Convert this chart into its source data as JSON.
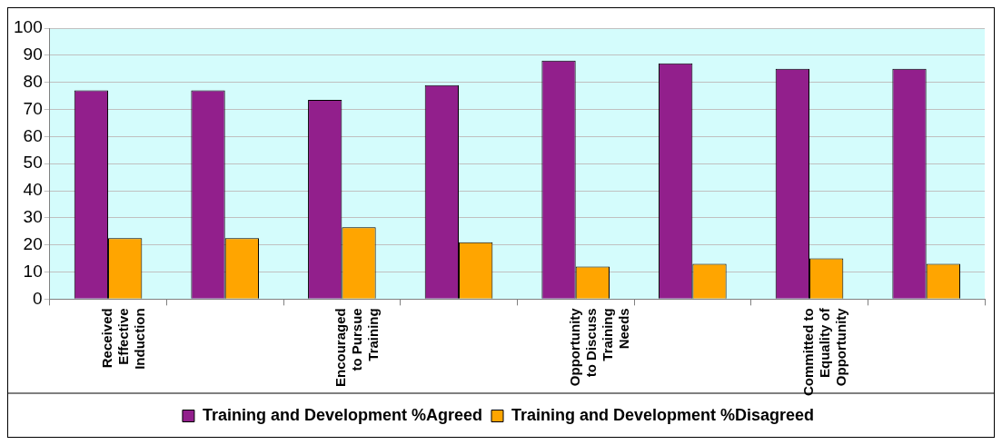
{
  "chart_data": {
    "type": "bar",
    "categories": [
      "Received Effective Induction",
      null,
      "Encouraged to Pursue Training",
      null,
      "Opportunity to Discuss Training Needs",
      null,
      "Committed to Equality of Opportunity",
      null
    ],
    "series": [
      {
        "name": "Training and Development %Agreed",
        "color": "#921f8c",
        "values": [
          77,
          77,
          73.5,
          79,
          88,
          87,
          85,
          85
        ]
      },
      {
        "name": "Training and Development %Disagreed",
        "color": "#ffa500",
        "values": [
          22.5,
          22.5,
          26.5,
          21,
          12,
          13,
          15,
          13
        ]
      }
    ],
    "ylim": [
      0,
      100
    ],
    "yticks": [
      0,
      10,
      20,
      30,
      40,
      50,
      60,
      70,
      80,
      90,
      100
    ],
    "grid": "y",
    "legend": "bottom"
  }
}
